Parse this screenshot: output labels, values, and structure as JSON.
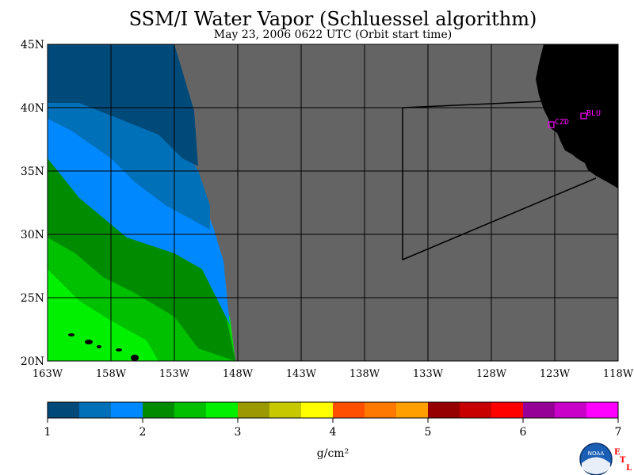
{
  "title": "SSM/I Water Vapor (Schluessel algorithm)",
  "subtitle": "May 23, 2006  0622 UTC  (Orbit start time)",
  "lat_labels": [
    "45N",
    "40N",
    "35N",
    "30N",
    "25N",
    "20N"
  ],
  "lon_labels": [
    "163W",
    "158W",
    "153W",
    "148W",
    "143W",
    "138W",
    "133W",
    "128W",
    "123W",
    "118W"
  ],
  "stations": [
    {
      "code": "CZD"
    },
    {
      "code": "BLU"
    }
  ],
  "colorbar": {
    "ticks": [
      "1",
      "2",
      "3",
      "4",
      "5",
      "6",
      "7"
    ],
    "unit": "g/cm²",
    "colors": [
      "#004a7a",
      "#0070b8",
      "#0088ff",
      "#008c00",
      "#00c000",
      "#00f000",
      "#9a9a00",
      "#c8c800",
      "#ffff00",
      "#ff5000",
      "#ff7800",
      "#ffa000",
      "#960000",
      "#c80000",
      "#ff0000",
      "#960096",
      "#c800c8",
      "#ff00ff"
    ]
  },
  "logo": {
    "text": "NOAA",
    "letters": [
      "E",
      "T",
      "L"
    ]
  },
  "colors": {
    "no_data": "#646464",
    "land": "#000000",
    "station": "#ff00ff",
    "logo_letters": "#ff0000"
  }
}
